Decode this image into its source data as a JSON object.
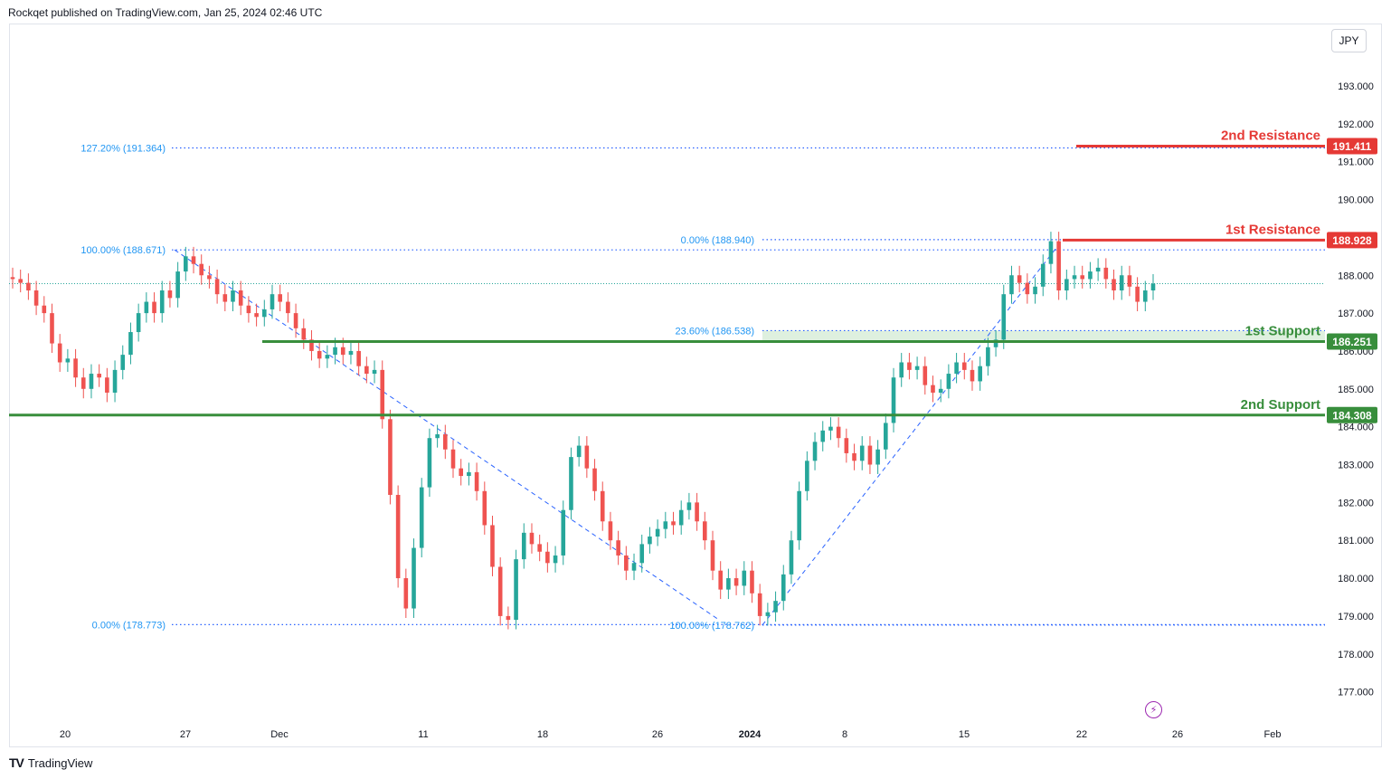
{
  "header": {
    "published": "Rockqet published on TradingView.com, Jan 25, 2024 02:46 UTC"
  },
  "currency": "JPY",
  "footer": {
    "brand": "TradingView",
    "logo_text": "TV"
  },
  "icons": {
    "logo": "tradingview-logo-icon",
    "event": "lightning-icon"
  },
  "colors": {
    "up": "#26a69a",
    "down": "#ef5350",
    "support": "#388e3c",
    "resistance": "#e53935",
    "fib": "#2962ff",
    "fib_label": "#2196f3"
  },
  "chart_data": {
    "type": "candlestick",
    "y_ticks": [
      "193.000",
      "192.000",
      "191.000",
      "190.000",
      "189.000",
      "188.000",
      "187.000",
      "186.000",
      "185.000",
      "184.000",
      "183.000",
      "182.000",
      "181.000",
      "180.000",
      "179.000",
      "178.000",
      "177.000"
    ],
    "y_values": [
      193,
      192,
      191,
      190,
      189,
      188,
      187,
      186,
      185,
      184,
      183,
      182,
      181,
      180,
      179,
      178,
      177
    ],
    "x_ticks": [
      "20",
      "27",
      "Dec",
      "11",
      "18",
      "26",
      "2024",
      "8",
      "15",
      "22",
      "26",
      "Feb"
    ],
    "levels": [
      {
        "name": "2nd Resistance",
        "value": 191.411,
        "label": "191.411",
        "role": "resistance"
      },
      {
        "name": "1st Resistance",
        "value": 188.928,
        "label": "188.928",
        "role": "resistance"
      },
      {
        "name": "1st Support",
        "value": 186.251,
        "label": "186.251",
        "role": "support"
      },
      {
        "name": "2nd Support",
        "value": 184.308,
        "label": "184.308",
        "role": "support"
      }
    ],
    "fib_left": [
      {
        "label": "127.20% (191.364)",
        "value": 191.364
      },
      {
        "label": "100.00% (188.671)",
        "value": 188.671
      },
      {
        "label": "0.00% (178.773)",
        "value": 178.773
      }
    ],
    "fib_right": [
      {
        "label": "0.00% (188.940)",
        "value": 188.94
      },
      {
        "label": "23.60% (186.538)",
        "value": 186.538
      },
      {
        "label": "100.00% (178.762)",
        "value": 178.762
      }
    ],
    "last_price": 187.78,
    "closes": [
      187.9,
      187.8,
      187.6,
      187.2,
      187.0,
      186.2,
      185.7,
      185.8,
      185.3,
      185.0,
      185.4,
      185.3,
      184.9,
      185.5,
      185.9,
      186.5,
      187.0,
      187.3,
      187.0,
      187.6,
      187.4,
      188.1,
      188.5,
      188.3,
      188.0,
      187.9,
      187.5,
      187.3,
      187.6,
      187.2,
      187.0,
      186.9,
      187.1,
      187.5,
      187.3,
      187.0,
      186.6,
      186.3,
      186.0,
      185.8,
      185.9,
      186.1,
      185.9,
      186.0,
      185.6,
      185.4,
      185.5,
      184.2,
      182.2,
      180.0,
      179.2,
      180.8,
      182.4,
      183.7,
      183.8,
      183.4,
      182.9,
      182.7,
      182.8,
      182.3,
      181.4,
      180.3,
      179.0,
      178.9,
      180.5,
      181.2,
      180.9,
      180.7,
      180.4,
      180.6,
      181.8,
      183.2,
      183.5,
      182.9,
      182.3,
      181.5,
      181.0,
      180.6,
      180.2,
      180.4,
      180.9,
      181.1,
      181.3,
      181.5,
      181.4,
      181.8,
      182.0,
      181.5,
      181.0,
      180.2,
      179.7,
      180.0,
      179.8,
      180.2,
      179.6,
      179.0,
      179.1,
      179.4,
      180.1,
      181.0,
      182.3,
      183.1,
      183.6,
      183.9,
      184.0,
      183.7,
      183.3,
      183.1,
      183.5,
      183.0,
      183.4,
      184.1,
      185.3,
      185.7,
      185.5,
      185.6,
      185.1,
      184.9,
      185.0,
      185.4,
      185.7,
      185.5,
      185.2,
      185.6,
      186.1,
      186.3,
      187.5,
      188.0,
      187.8,
      187.5,
      187.7,
      188.3,
      188.9,
      187.6,
      187.9,
      188.0,
      187.9,
      188.1,
      188.2,
      187.9,
      187.6,
      188.0,
      187.7,
      187.3,
      187.6,
      187.78
    ]
  }
}
